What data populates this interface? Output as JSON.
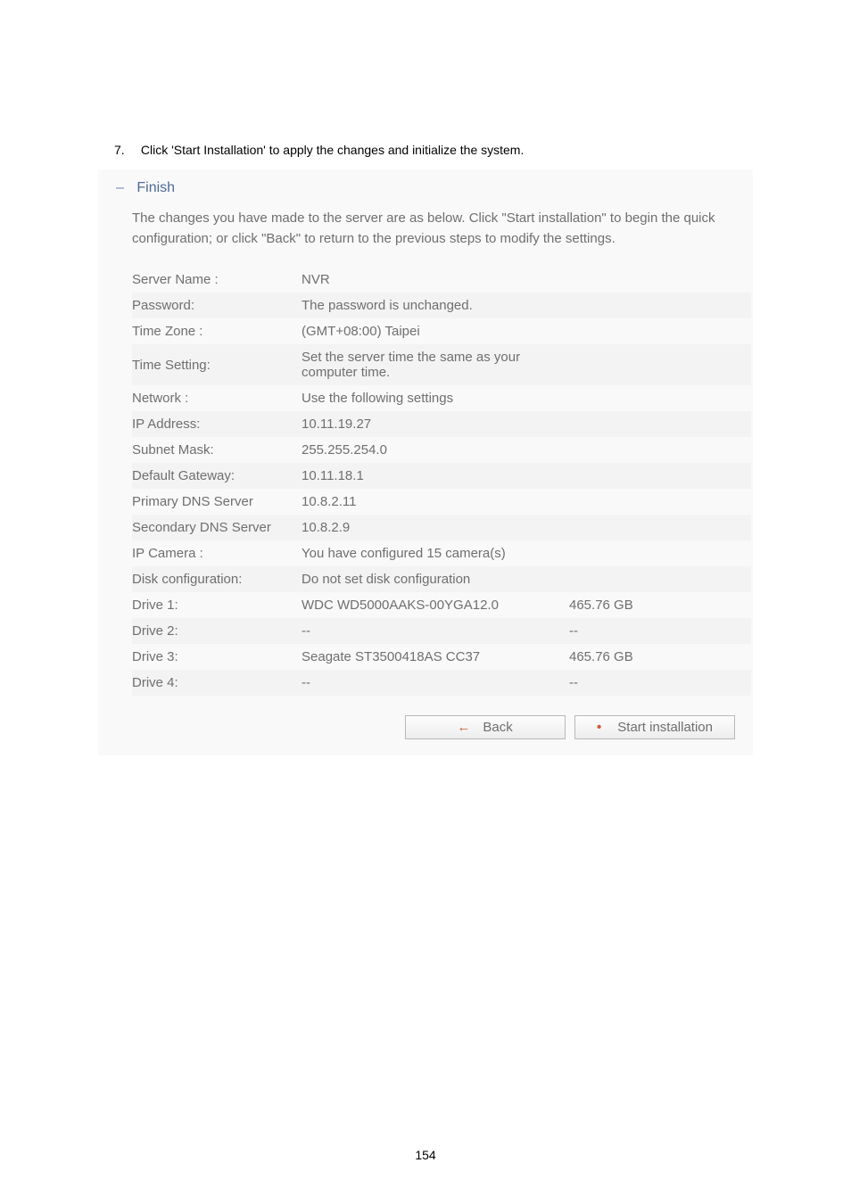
{
  "instruction": {
    "number": "7.",
    "text": "Click 'Start Installation' to apply the changes and initialize the system."
  },
  "panel": {
    "title": "Finish",
    "description": "The changes you have made to the server are as below. Click \"Start installation\" to begin the quick configuration; or click \"Back\" to return to the previous steps to modify the settings."
  },
  "rows": [
    {
      "label": "Server Name :",
      "a": "NVR",
      "b": "",
      "alt": false
    },
    {
      "label": "Password:",
      "a": "The password is unchanged.",
      "b": "",
      "alt": true
    },
    {
      "label": "Time Zone :",
      "a": "(GMT+08:00) Taipei",
      "b": "",
      "alt": false
    },
    {
      "label": "Time Setting:",
      "a": "Set the server time the same as your computer time.",
      "b": "",
      "alt": true
    },
    {
      "label": "Network :",
      "a": "Use the following settings",
      "b": "",
      "alt": false
    },
    {
      "label": "IP Address:",
      "a": "10.11.19.27",
      "b": "",
      "alt": true
    },
    {
      "label": "Subnet Mask:",
      "a": "255.255.254.0",
      "b": "",
      "alt": false
    },
    {
      "label": "Default Gateway:",
      "a": "10.11.18.1",
      "b": "",
      "alt": true
    },
    {
      "label": "Primary DNS Server",
      "a": "10.8.2.11",
      "b": "",
      "alt": false
    },
    {
      "label": "Secondary DNS Server",
      "a": "10.8.2.9",
      "b": "",
      "alt": true
    },
    {
      "label": "IP Camera :",
      "a": "You have configured 15 camera(s)",
      "b": "",
      "alt": false
    },
    {
      "label": "Disk configuration:",
      "a": "Do not set disk configuration",
      "b": "",
      "alt": true
    },
    {
      "label": "Drive 1:",
      "a": "WDC WD5000AAKS-00YGA12.0",
      "b": "465.76 GB",
      "alt": false
    },
    {
      "label": "Drive 2:",
      "a": "--",
      "b": "--",
      "alt": true
    },
    {
      "label": "Drive 3:",
      "a": "Seagate ST3500418AS CC37",
      "b": "465.76 GB",
      "alt": false
    },
    {
      "label": "Drive 4:",
      "a": "--",
      "b": "--",
      "alt": true
    }
  ],
  "buttons": {
    "back": "Back",
    "start": "Start installation"
  },
  "page_number": "154",
  "colors": {
    "panel_bg": "#f9f9f9",
    "row_alt_bg": "#f4f3f3",
    "heading": "#4e6a98",
    "text": "#6f6f6f",
    "accent": "#cf5a3a"
  }
}
